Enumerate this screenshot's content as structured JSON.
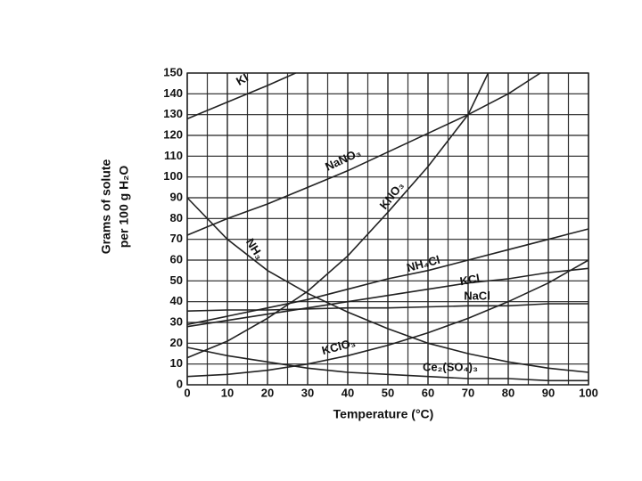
{
  "chart_data": {
    "type": "line",
    "ylabel": [
      "Grams of solute",
      "per 100 g H₂O"
    ],
    "xlabel": "Temperature (°C)",
    "xlim": [
      0,
      100
    ],
    "xticks": [
      0,
      10,
      20,
      30,
      40,
      50,
      60,
      70,
      80,
      90,
      100
    ],
    "x_minor_ticks": [
      5,
      15,
      25,
      35,
      45,
      55,
      65,
      75,
      85,
      95
    ],
    "ylim": [
      0,
      150
    ],
    "yticks": [
      0,
      10,
      20,
      30,
      40,
      50,
      60,
      70,
      80,
      90,
      100,
      110,
      120,
      130,
      140,
      150
    ],
    "grid": true,
    "series": [
      {
        "name": "KI",
        "color": "#222",
        "x": [
          0,
          10,
          20,
          27
        ],
        "values": [
          128,
          136,
          144,
          150
        ]
      },
      {
        "name": "NaNO₃",
        "color": "#222",
        "x": [
          0,
          10,
          20,
          30,
          40,
          50,
          60,
          70,
          80,
          88
        ],
        "values": [
          72,
          80,
          87,
          95,
          103,
          112,
          121,
          130,
          140,
          150
        ]
      },
      {
        "name": "KNO₃",
        "color": "#222",
        "x": [
          0,
          10,
          20,
          30,
          40,
          50,
          60,
          70,
          75
        ],
        "values": [
          13,
          21,
          32,
          45,
          62,
          83,
          105,
          130,
          150
        ]
      },
      {
        "name": "NH₃",
        "color": "#222",
        "x": [
          0,
          10,
          20,
          30,
          40,
          50,
          60,
          70,
          80,
          90,
          100
        ],
        "values": [
          90,
          70,
          55,
          44,
          35,
          27,
          20,
          15,
          11,
          8,
          6
        ]
      },
      {
        "name": "NH₄Cl",
        "color": "#222",
        "x": [
          0,
          10,
          20,
          30,
          40,
          50,
          60,
          70,
          80,
          90,
          100
        ],
        "values": [
          29,
          33,
          37,
          41,
          46,
          51,
          55,
          60,
          65,
          70,
          75
        ]
      },
      {
        "name": "KCl",
        "color": "#222",
        "x": [
          0,
          10,
          20,
          30,
          40,
          50,
          60,
          70,
          80,
          90,
          100
        ],
        "values": [
          28,
          31,
          34,
          37,
          40,
          43,
          46,
          49,
          51,
          54,
          56
        ]
      },
      {
        "name": "NaCl",
        "color": "#222",
        "x": [
          0,
          10,
          20,
          30,
          40,
          50,
          60,
          70,
          80,
          90,
          100
        ],
        "values": [
          35.5,
          36,
          36,
          36.5,
          37,
          37,
          37.5,
          38,
          38,
          39,
          39
        ]
      },
      {
        "name": "KClO₃",
        "color": "#222",
        "x": [
          0,
          10,
          20,
          30,
          40,
          50,
          60,
          70,
          80,
          90,
          100
        ],
        "values": [
          4,
          5,
          7,
          10,
          14,
          19,
          25,
          32,
          40,
          49,
          60
        ]
      },
      {
        "name": "Ce₂(SO₄)₃",
        "color": "#222",
        "x": [
          0,
          10,
          20,
          30,
          40,
          50,
          60,
          70,
          80,
          90,
          100
        ],
        "values": [
          18,
          14,
          11,
          8,
          6,
          5,
          4,
          3,
          3,
          2,
          2
        ]
      }
    ]
  }
}
